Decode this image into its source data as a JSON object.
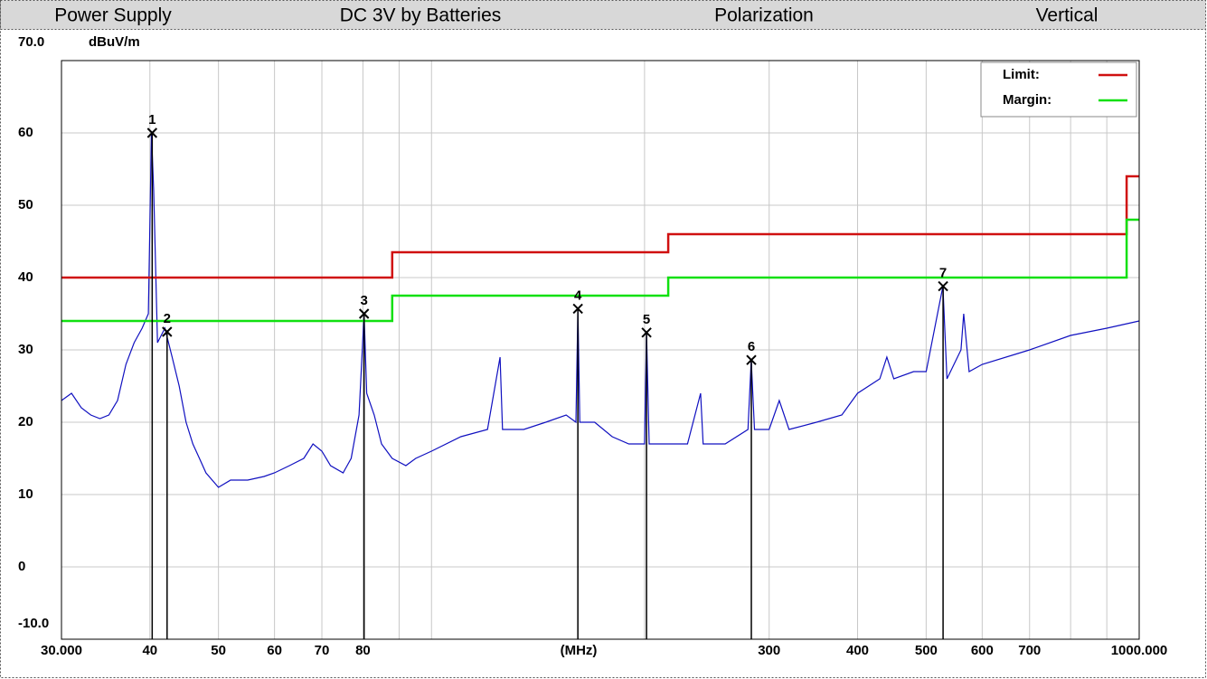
{
  "header": {
    "cells": [
      "Power Supply",
      "DC 3V by Batteries",
      "Polarization",
      "Vertical"
    ]
  },
  "chart_data": {
    "type": "line",
    "y_label": "dBuV/m",
    "x_label": "(MHz)",
    "xscale": "log",
    "xlim": [
      30,
      1000
    ],
    "ylim": [
      -10,
      70
    ],
    "xticks": [
      {
        "value": 30,
        "label": "30.000"
      },
      40,
      50,
      60,
      70,
      80,
      300,
      400,
      500,
      600,
      700,
      {
        "value": 1000,
        "label": "1000.000"
      }
    ],
    "xgrid": [
      30,
      40,
      50,
      60,
      70,
      80,
      90,
      100,
      200,
      300,
      400,
      500,
      600,
      700,
      800,
      900,
      1000
    ],
    "yticks": [
      {
        "value": 70,
        "label": "70.0"
      },
      60,
      50,
      40,
      30,
      20,
      10,
      0,
      {
        "value": -10,
        "label": "-10.0"
      }
    ],
    "grid": true,
    "legend": "top-right",
    "series": [
      {
        "name": "Limit:",
        "color": "#d01010",
        "x": [
          30,
          88,
          88,
          216,
          216,
          960,
          960,
          1000
        ],
        "values": [
          40,
          40,
          43.5,
          43.5,
          46,
          46,
          54,
          54
        ]
      },
      {
        "name": "Margin:",
        "color": "#10e010",
        "x": [
          30,
          88,
          88,
          216,
          216,
          960,
          960,
          1000
        ],
        "values": [
          34,
          34,
          37.5,
          37.5,
          40,
          40,
          48,
          48
        ]
      }
    ],
    "trace": {
      "color": "#1010c0",
      "x": [
        30,
        31,
        32,
        33,
        34,
        35,
        36,
        37,
        38,
        39,
        39.8,
        40.2,
        40.5,
        41,
        42,
        42.5,
        43,
        44,
        45,
        46,
        47,
        48,
        50,
        52,
        55,
        58,
        60,
        63,
        66,
        68,
        70,
        72,
        75,
        77,
        79,
        80.3,
        81,
        83,
        85,
        88,
        92,
        95,
        100,
        110,
        120,
        125,
        126,
        135,
        145,
        155,
        160,
        161,
        162,
        170,
        180,
        190,
        200,
        201.3,
        203,
        215,
        230,
        240,
        242,
        260,
        280,
        283,
        286,
        300,
        310,
        320,
        350,
        380,
        400,
        430,
        440,
        450,
        480,
        500,
        528,
        535,
        560,
        565,
        575,
        600,
        700,
        800,
        900,
        1000
      ],
      "values": [
        23,
        24,
        22,
        21,
        20.5,
        21,
        23,
        28,
        31,
        33,
        35,
        60,
        52,
        31,
        33,
        31,
        29,
        25,
        20,
        17,
        15,
        13,
        11,
        12,
        12,
        12.5,
        13,
        14,
        15,
        17,
        16,
        14,
        13,
        15,
        21,
        35,
        24,
        21,
        17,
        15,
        14,
        15,
        16,
        18,
        19,
        29,
        19,
        19,
        20,
        21,
        20,
        35.7,
        20,
        20,
        18,
        17,
        17,
        32.4,
        17,
        17,
        17,
        24,
        17,
        17,
        19,
        28.6,
        19,
        19,
        23,
        19,
        20,
        21,
        24,
        26,
        29,
        26,
        27,
        27,
        38.8,
        26,
        30,
        35,
        27,
        28,
        30,
        32,
        33,
        34
      ]
    },
    "markers": [
      {
        "label": "1",
        "freq": 40.3,
        "level": 60.0
      },
      {
        "label": "2",
        "freq": 42.3,
        "level": 32.5
      },
      {
        "label": "3",
        "freq": 80.3,
        "level": 35.0
      },
      {
        "label": "4",
        "freq": 161.0,
        "level": 35.7
      },
      {
        "label": "5",
        "freq": 201.3,
        "level": 32.4
      },
      {
        "label": "6",
        "freq": 283.1,
        "level": 28.6
      },
      {
        "label": "7",
        "freq": 528.3,
        "level": 38.8
      }
    ]
  }
}
